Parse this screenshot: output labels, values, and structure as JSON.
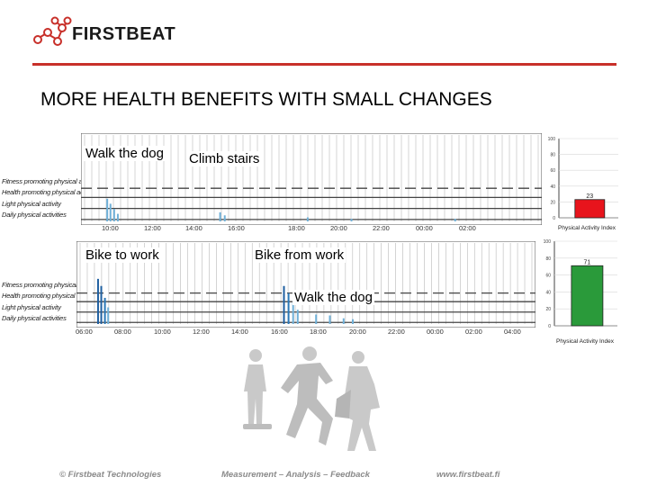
{
  "brand": {
    "name": "FIRSTBEAT",
    "accent": "#c8302a"
  },
  "slide": {
    "title": "MORE HEALTH BENEFITS WITH SMALL CHANGES"
  },
  "row_labels": [
    "Fitness promoting physical activity",
    "Health promoting physical activity",
    "Light physical activity",
    "Daily physical activities"
  ],
  "chart1": {
    "callouts": [
      "Walk the dog",
      "Climb stairs"
    ],
    "time_ticks": [
      "10:00",
      "12:00",
      "14:00",
      "16:00",
      "18:00",
      "20:00",
      "22:00",
      "00:00",
      "02:00"
    ],
    "bar": {
      "value": 23,
      "label": "Physical Activity Index",
      "color": "#e8141c",
      "ylim": [
        0,
        100
      ],
      "yticks": [
        "100",
        "80",
        "60",
        "40",
        "20",
        "0"
      ]
    }
  },
  "chart2": {
    "callouts": [
      "Bike to work",
      "Bike from work",
      "Walk the dog"
    ],
    "time_ticks": [
      "06:00",
      "08:00",
      "10:00",
      "12:00",
      "14:00",
      "16:00",
      "18:00",
      "20:00",
      "22:00",
      "00:00",
      "02:00",
      "04:00"
    ],
    "bar": {
      "value": 71,
      "label": "Physical Activity Index",
      "color": "#2a9a3a",
      "ylim": [
        0,
        100
      ],
      "yticks": [
        "100",
        "80",
        "60",
        "40",
        "20",
        "0"
      ]
    }
  },
  "footer": {
    "left": "© Firstbeat Technologies",
    "center": "Measurement – Analysis – Feedback",
    "right": "www.firstbeat.fi"
  }
}
